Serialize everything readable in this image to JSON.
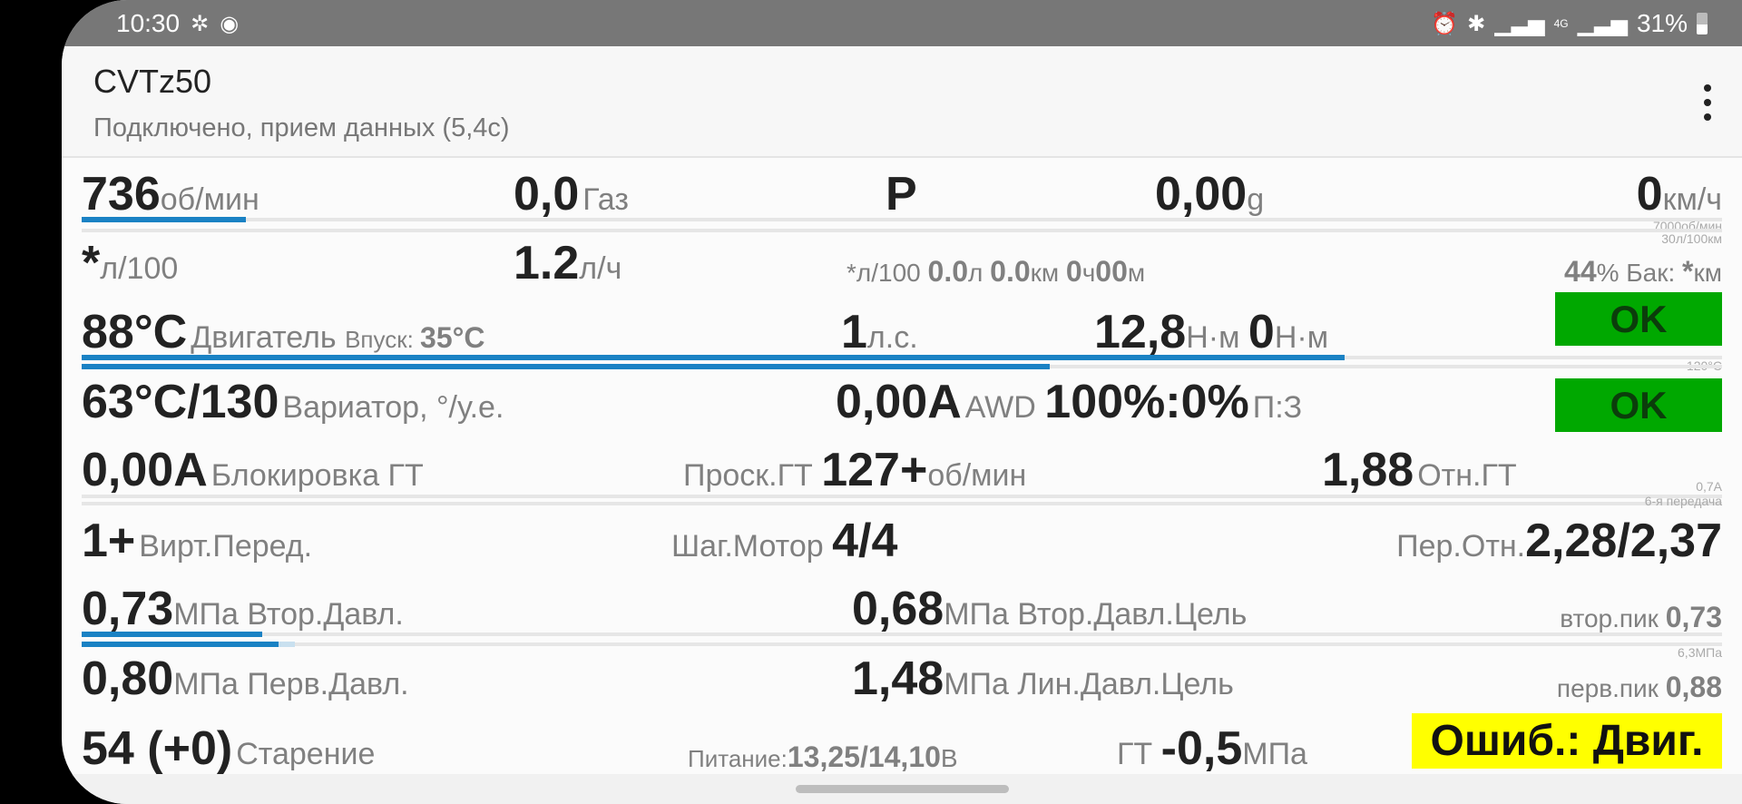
{
  "status_bar": {
    "time": "10:30",
    "left_icons": [
      "fan-icon",
      "spotify-icon"
    ],
    "right_icons": [
      "alarm-icon",
      "bluetooth-icon",
      "signal-icon",
      "4g-icon",
      "signal-icon"
    ],
    "battery": "31%"
  },
  "app_bar": {
    "title": "CVTz50",
    "subtitle": "Подключено, прием данных (5,4с)",
    "menu_icon": "more-vert-icon"
  },
  "rows": [
    {
      "items": [
        {
          "id": "rpm",
          "parts": [
            {
              "text": "736",
              "role": "value"
            },
            {
              "text": "об/мин",
              "role": "unit"
            }
          ]
        },
        {
          "id": "throttle",
          "parts": [
            {
              "text": "0,0",
              "role": "value"
            },
            {
              "text": "Газ",
              "role": "label"
            }
          ]
        },
        {
          "id": "gear-selector",
          "parts": [
            {
              "text": "P",
              "role": "value"
            }
          ]
        },
        {
          "id": "g-force",
          "parts": [
            {
              "text": "0,00",
              "role": "value"
            },
            {
              "text": "g",
              "role": "unit"
            }
          ]
        },
        {
          "id": "speed",
          "parts": [
            {
              "text": "0",
              "role": "value"
            },
            {
              "text": "км/ч",
              "role": "unit"
            }
          ]
        }
      ]
    },
    {
      "items": [
        {
          "id": "fuel-per-100",
          "parts": [
            {
              "text": "*",
              "role": "value"
            },
            {
              "text": "л/100",
              "role": "unit"
            }
          ]
        },
        {
          "id": "fuel-per-hour",
          "parts": [
            {
              "text": "1.2",
              "role": "value"
            },
            {
              "text": "л/ч",
              "role": "unit"
            }
          ]
        },
        {
          "id": "trip",
          "parts": [
            {
              "text": "*",
              "role": "slabel"
            },
            {
              "text": "л/100 ",
              "role": "slabel"
            },
            {
              "text": "0.0",
              "role": "svalue"
            },
            {
              "text": "л ",
              "role": "slabel"
            },
            {
              "text": "0.0",
              "role": "svalue"
            },
            {
              "text": "км ",
              "role": "slabel"
            },
            {
              "text": "0",
              "role": "svalue"
            },
            {
              "text": "ч",
              "role": "slabel"
            },
            {
              "text": "00",
              "role": "svalue"
            },
            {
              "text": "м",
              "role": "slabel"
            }
          ]
        },
        {
          "id": "tank",
          "parts": [
            {
              "text": "44",
              "role": "svalue"
            },
            {
              "text": "% Бак: ",
              "role": "slabel"
            },
            {
              "text": "*",
              "role": "svalue"
            },
            {
              "text": "км",
              "role": "slabel"
            }
          ]
        }
      ]
    },
    {
      "items": [
        {
          "id": "engine-temp",
          "parts": [
            {
              "text": "88°C",
              "role": "value"
            },
            {
              "text": "Двигатель ",
              "role": "label"
            },
            {
              "text": "Впуск: ",
              "role": "tlabel"
            },
            {
              "text": "35°C",
              "role": "svalue"
            }
          ]
        },
        {
          "id": "power",
          "parts": [
            {
              "text": "1",
              "role": "value"
            },
            {
              "text": "л.с.",
              "role": "unit"
            }
          ]
        },
        {
          "id": "torque",
          "parts": [
            {
              "text": "12,8",
              "role": "value"
            },
            {
              "text": "Н·м ",
              "role": "unit"
            },
            {
              "text": "0",
              "role": "value"
            },
            {
              "text": "Н·м",
              "role": "unit"
            }
          ]
        }
      ]
    },
    {
      "items": [
        {
          "id": "cvt-temp",
          "parts": [
            {
              "text": "63°C/130",
              "role": "value"
            },
            {
              "text": "Вариатор, °/у.е.",
              "role": "label"
            }
          ]
        },
        {
          "id": "awd",
          "parts": [
            {
              "text": "0,00A",
              "role": "value"
            },
            {
              "text": "AWD ",
              "role": "label"
            },
            {
              "text": "100%:0%",
              "role": "value"
            },
            {
              "text": "П:З",
              "role": "label"
            }
          ]
        }
      ]
    },
    {
      "items": [
        {
          "id": "lockup",
          "parts": [
            {
              "text": "0,00A",
              "role": "value"
            },
            {
              "text": "Блокировка ГТ",
              "role": "label"
            }
          ]
        },
        {
          "id": "tc-slip",
          "parts": [
            {
              "text": "Проск.ГТ ",
              "role": "label"
            },
            {
              "text": "127+",
              "role": "value"
            },
            {
              "text": "об/мин",
              "role": "unit"
            }
          ]
        },
        {
          "id": "tc-ratio",
          "parts": [
            {
              "text": "1,88",
              "role": "value"
            },
            {
              "text": "Отн.ГТ",
              "role": "label"
            }
          ]
        }
      ]
    },
    {
      "items": [
        {
          "id": "virtual-gear",
          "parts": [
            {
              "text": "1+",
              "role": "value"
            },
            {
              "text": "Вирт.Перед.",
              "role": "label"
            }
          ]
        },
        {
          "id": "stepper",
          "parts": [
            {
              "text": "Шаг.Мотор ",
              "role": "label"
            },
            {
              "text": "4/4",
              "role": "value"
            }
          ]
        },
        {
          "id": "gear-ratio",
          "parts": [
            {
              "text": "Пер.Отн.",
              "role": "label"
            },
            {
              "text": "2,28/2,37",
              "role": "value"
            }
          ]
        }
      ]
    },
    {
      "items": [
        {
          "id": "sec-pressure",
          "parts": [
            {
              "text": "0,73",
              "role": "value"
            },
            {
              "text": "МПа Втор.Давл.",
              "role": "unit"
            }
          ]
        },
        {
          "id": "sec-pressure-target",
          "parts": [
            {
              "text": "0,68",
              "role": "value"
            },
            {
              "text": "МПа Втор.Давл.Цель",
              "role": "unit"
            }
          ]
        },
        {
          "id": "sec-peak",
          "parts": [
            {
              "text": "втор.пик ",
              "role": "slabel"
            },
            {
              "text": "0,73",
              "role": "svalue"
            }
          ]
        }
      ]
    },
    {
      "items": [
        {
          "id": "pri-pressure",
          "parts": [
            {
              "text": "0,80",
              "role": "value"
            },
            {
              "text": "МПа Перв.Давл.",
              "role": "unit"
            }
          ]
        },
        {
          "id": "line-pressure-target",
          "parts": [
            {
              "text": "1,48",
              "role": "value"
            },
            {
              "text": "МПа Лин.Давл.Цель",
              "role": "unit"
            }
          ]
        },
        {
          "id": "pri-peak",
          "parts": [
            {
              "text": "перв.пик ",
              "role": "slabel"
            },
            {
              "text": "0,88",
              "role": "svalue"
            }
          ]
        }
      ]
    },
    {
      "items": [
        {
          "id": "aging",
          "parts": [
            {
              "text": "54 (+0)",
              "role": "value"
            },
            {
              "text": "Старение",
              "role": "label"
            }
          ]
        },
        {
          "id": "voltage",
          "parts": [
            {
              "text": "Питание:",
              "role": "tlabel"
            },
            {
              "text": "13,25/14,10",
              "role": "svalue"
            },
            {
              "text": "В",
              "role": "slabel"
            }
          ]
        },
        {
          "id": "tc-pressure",
          "parts": [
            {
              "text": "ГТ ",
              "role": "label"
            },
            {
              "text": "-0,5",
              "role": "value"
            },
            {
              "text": "МПа",
              "role": "unit"
            }
          ]
        }
      ]
    }
  ],
  "gauges": [
    {
      "id": "rpm-gauge",
      "max_label": "7000об/мин",
      "fill_percent": 10
    },
    {
      "id": "fuel-gauge",
      "max_label": "30л/100км",
      "fill_percent": 0
    },
    {
      "id": "engine-temp-gauge",
      "max_label": "120°C",
      "fill_percent": 77
    },
    {
      "id": "cvt-temp-gauge",
      "max_label": "",
      "fill_percent": 59
    },
    {
      "id": "lockup-gauge",
      "max_label": "0,7А",
      "fill_percent": 0
    },
    {
      "id": "gear-gauge",
      "max_label": "6-я передача",
      "fill_percent": 0
    },
    {
      "id": "sec-pressure-gauge",
      "max_label": "6,3МПа",
      "fill_percent": 11,
      "secondary_percent": 0
    },
    {
      "id": "pri-pressure-gauge",
      "max_label": "",
      "fill_percent": 12,
      "secondary_percent": 13
    }
  ],
  "badges": {
    "engine_status": "OK",
    "cvt_status": "OK",
    "error": "Ошиб.: Двиг."
  },
  "colors": {
    "accent": "#1a82c4",
    "ok": "#00a800",
    "error": "#ffff00",
    "status_bar": "#777777"
  }
}
